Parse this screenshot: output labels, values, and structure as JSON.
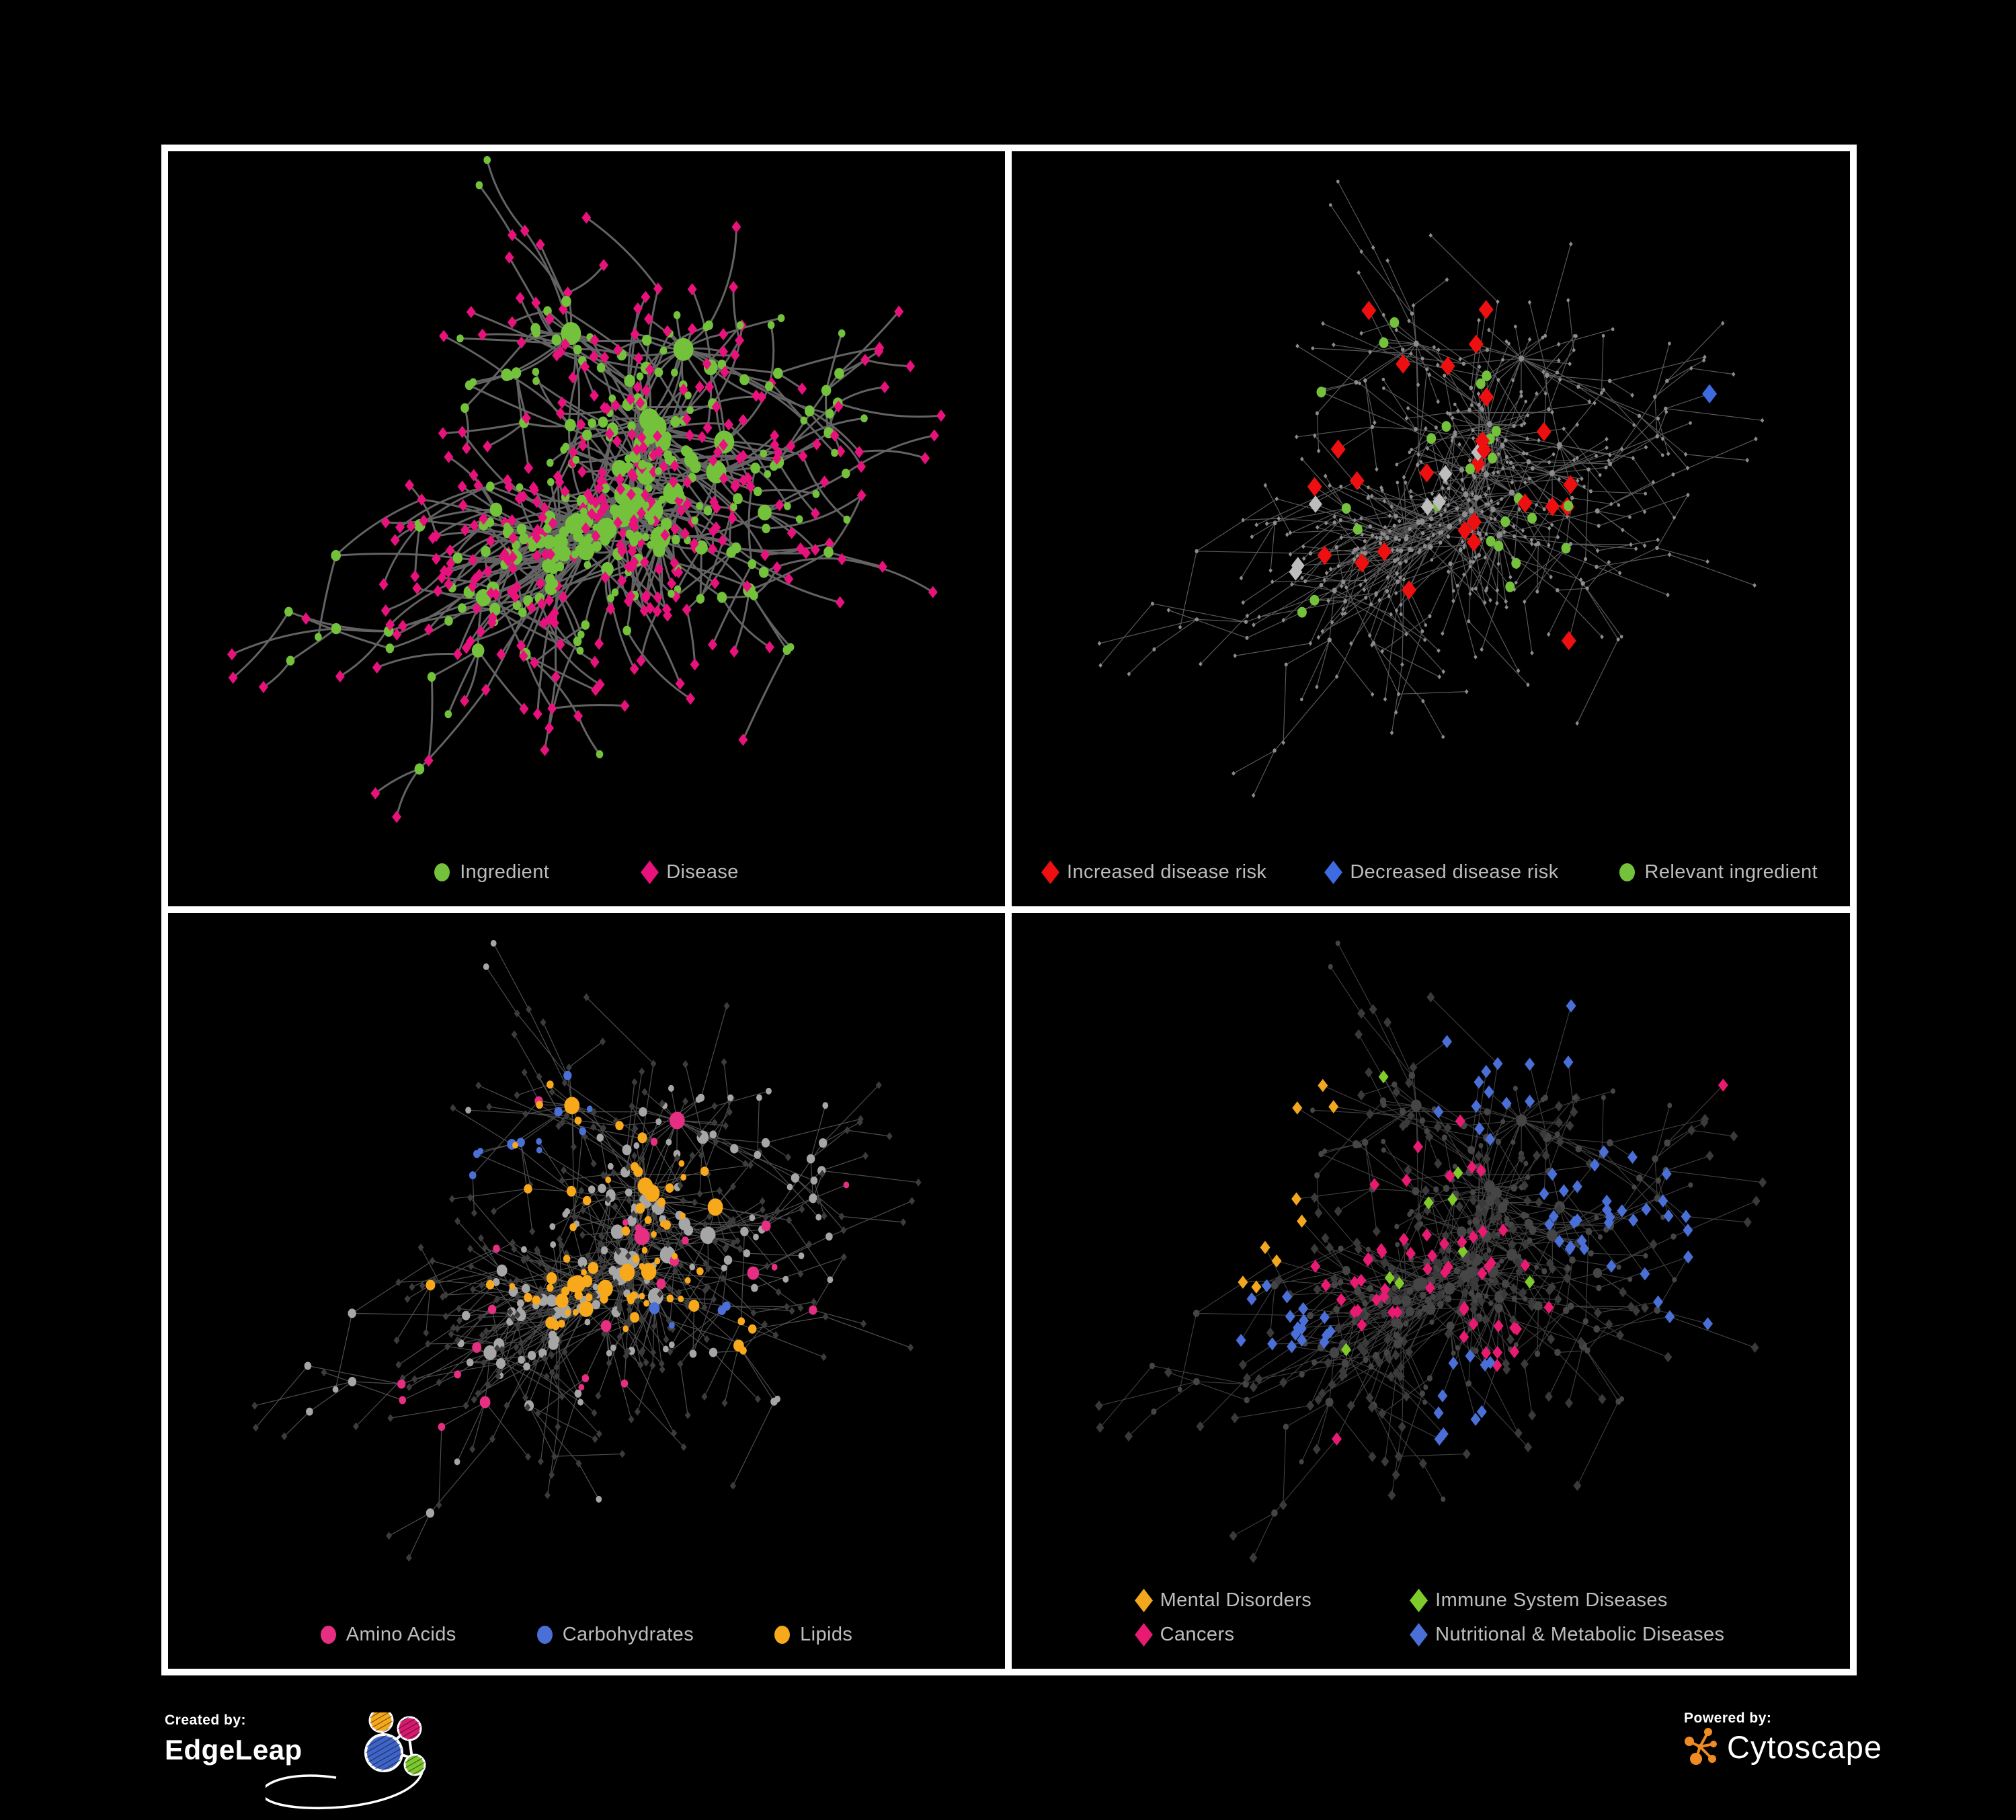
{
  "figure": {
    "background": "#000000",
    "frame_color": "#ffffff",
    "legend_text_color": "#bdbdbd"
  },
  "network": {
    "seed": 1337,
    "node_count": 620,
    "extra_edges": 0.05
  },
  "panels": [
    {
      "name": "ingredient-disease",
      "legend_layout": "row",
      "legend_gap": 140,
      "legend": [
        {
          "shape": "circle",
          "color": "#74c23c",
          "label": "Ingredient"
        },
        {
          "shape": "diamond",
          "color": "#e8127c",
          "label": "Disease"
        }
      ],
      "style": {
        "zoom": 1.07,
        "edge": {
          "stroke": "#6c6c6c",
          "width": 3,
          "opacity": 0.92,
          "curved": true
        },
        "circle": {
          "fill": "#74c23c",
          "rBase": 6,
          "rDeg": 1.15,
          "rMax": 17
        },
        "diamond": {
          "fill": "#e8127c",
          "r": 7
        },
        "highlights": []
      }
    },
    {
      "name": "disease-risk",
      "legend_layout": "row",
      "legend_gap": 90,
      "legend": [
        {
          "shape": "diamond",
          "color": "#ee1010",
          "label": "Increased disease risk"
        },
        {
          "shape": "diamond",
          "color": "#3f6be0",
          "label": "Decreased disease risk"
        },
        {
          "shape": "circle",
          "color": "#74c23c",
          "label": "Relevant ingredient"
        }
      ],
      "style": {
        "zoom": 1,
        "edge": {
          "stroke": "#707070",
          "width": 1.2,
          "opacity": 0.8,
          "curved": false
        },
        "circle": {
          "fill": "#8c8c8c",
          "rBase": 2.6,
          "rDeg": 0.25,
          "rMax": 4.6
        },
        "diamond": {
          "fill": "#8c8c8c",
          "r": 2.8
        },
        "highlights": [
          {
            "shape": "diamond",
            "color": "#ee1010",
            "size": 11,
            "count": 26,
            "regions": [
              [
                0.44,
                0.36,
                0.2
              ],
              [
                0.63,
                0.5,
                0.12
              ],
              [
                0.4,
                0.6,
                0.1
              ],
              [
                0.74,
                0.77,
                0.07
              ],
              [
                0.57,
                0.22,
                0.06
              ],
              [
                0.67,
                0.7,
                0.08
              ]
            ]
          },
          {
            "shape": "diamond",
            "color": "#3f6be0",
            "size": 11,
            "count": 9,
            "regions": [
              [
                0.17,
                0.36,
                0.09
              ],
              [
                0.93,
                0.38,
                0.05
              ],
              [
                0.22,
                0.44,
                0.05
              ]
            ]
          },
          {
            "shape": "diamond",
            "color": "#bdbdbd",
            "size": 10,
            "count": 7,
            "regions": [
              [
                0.3,
                0.42,
                0.12
              ],
              [
                0.56,
                0.46,
                0.1
              ],
              [
                0.33,
                0.64,
                0.06
              ]
            ]
          },
          {
            "shape": "circle",
            "color": "#74c23c",
            "size": 8,
            "count": 25,
            "regions": [
              [
                0.42,
                0.38,
                0.2
              ],
              [
                0.2,
                0.36,
                0.1
              ],
              [
                0.66,
                0.6,
                0.09
              ],
              [
                0.27,
                0.7,
                0.06
              ],
              [
                0.12,
                0.3,
                0.05
              ]
            ]
          }
        ]
      }
    },
    {
      "name": "compound-classes",
      "legend_layout": "row",
      "legend_gap": 120,
      "legend": [
        {
          "shape": "circle",
          "color": "#e62e82",
          "label": "Amino Acids"
        },
        {
          "shape": "circle",
          "color": "#4a6fd6",
          "label": "Carbohydrates"
        },
        {
          "shape": "circle",
          "color": "#f7a81b",
          "label": "Lipids"
        }
      ],
      "style": {
        "zoom": 1,
        "edge": {
          "stroke": "#9b9b9b",
          "width": 1.2,
          "opacity": 0.5,
          "curved": false
        },
        "circle": {
          "fill": "#a6a6a6",
          "rBase": 5,
          "rDeg": 1,
          "rMax": 13
        },
        "diamond": {
          "fill": "#3c3c3c",
          "r": 4.5
        },
        "highlights": [
          {
            "shape": "circle",
            "color": "#f7a81b",
            "size": 0,
            "count": 80,
            "regions": [
              [
                0.42,
                0.32,
                0.17
              ],
              [
                0.5,
                0.55,
                0.1
              ],
              [
                0.3,
                0.52,
                0.12
              ],
              [
                0.62,
                0.42,
                0.1
              ],
              [
                0.68,
                0.62,
                0.09
              ],
              [
                0.26,
                0.2,
                0.1
              ],
              [
                0.5,
                0.18,
                0.08
              ]
            ]
          },
          {
            "shape": "circle",
            "color": "#4a6fd6",
            "size": 0,
            "count": 15,
            "regions": [
              [
                0.45,
                0.3,
                0.1
              ],
              [
                0.12,
                0.24,
                0.05
              ],
              [
                0.66,
                0.6,
                0.06
              ],
              [
                0.36,
                0.33,
                0.06
              ]
            ]
          },
          {
            "shape": "circle",
            "color": "#e62e82",
            "size": 0,
            "count": 26,
            "regions": [
              [
                0.5,
                0.52,
                0.5
              ]
            ]
          }
        ]
      }
    },
    {
      "name": "disease-classes",
      "legend_layout": "grid",
      "legend_gap": 150,
      "legend": [
        {
          "shape": "diamond",
          "color": "#f3a71f",
          "label": "Mental Disorders"
        },
        {
          "shape": "diamond",
          "color": "#7fcb29",
          "label": "Immune System Diseases"
        },
        {
          "shape": "diamond",
          "color": "#e81a72",
          "label": "Cancers"
        },
        {
          "shape": "diamond",
          "color": "#4a6fd6",
          "label": "Nutritional & Metabolic Diseases"
        }
      ],
      "style": {
        "zoom": 1,
        "edge": {
          "stroke": "#9a9a9a",
          "width": 1.1,
          "opacity": 0.42,
          "curved": false
        },
        "circle": {
          "fill": "#454545",
          "rBase": 4,
          "rDeg": 0.7,
          "rMax": 9
        },
        "diamond": {
          "fill": "#3a3a3a",
          "r": 6
        },
        "highlights": [
          {
            "shape": "diamond",
            "color": "#f3a71f",
            "size": 7.5,
            "count": 95,
            "regions": [
              [
                0.16,
                0.42,
                0.16
              ],
              [
                0.3,
                0.3,
                0.1
              ],
              [
                0.22,
                0.12,
                0.08
              ],
              [
                0.08,
                0.52,
                0.07
              ]
            ]
          },
          {
            "shape": "diamond",
            "color": "#e81a72",
            "size": 7.5,
            "count": 55,
            "regions": [
              [
                0.47,
                0.5,
                0.15
              ],
              [
                0.58,
                0.6,
                0.1
              ],
              [
                0.9,
                0.2,
                0.06
              ],
              [
                0.35,
                0.85,
                0.05
              ],
              [
                0.52,
                0.35,
                0.08
              ]
            ]
          },
          {
            "shape": "diamond",
            "color": "#4a6fd6",
            "size": 7.5,
            "count": 75,
            "regions": [
              [
                0.8,
                0.42,
                0.13
              ],
              [
                0.6,
                0.2,
                0.12
              ],
              [
                0.27,
                0.62,
                0.08
              ],
              [
                0.55,
                0.75,
                0.08
              ],
              [
                0.16,
                0.08,
                0.07
              ],
              [
                0.9,
                0.6,
                0.07
              ],
              [
                0.7,
                0.08,
                0.08
              ]
            ]
          },
          {
            "shape": "diamond",
            "color": "#7fcb29",
            "size": 7.5,
            "count": 9,
            "regions": [
              [
                0.45,
                0.45,
                0.25
              ]
            ]
          }
        ]
      }
    }
  ],
  "footer": {
    "created_by_label": "Created by:",
    "edgeleap_brand": "EdgeLeap",
    "powered_by_label": "Powered by:",
    "cytoscape_brand": "Cytoscape",
    "edgeleap_colors": {
      "blue": "#3f64c8",
      "orange": "#f5a81c",
      "magenta": "#d6196e",
      "green": "#7dc82d"
    },
    "cytoscape_color": "#ef8b22"
  }
}
